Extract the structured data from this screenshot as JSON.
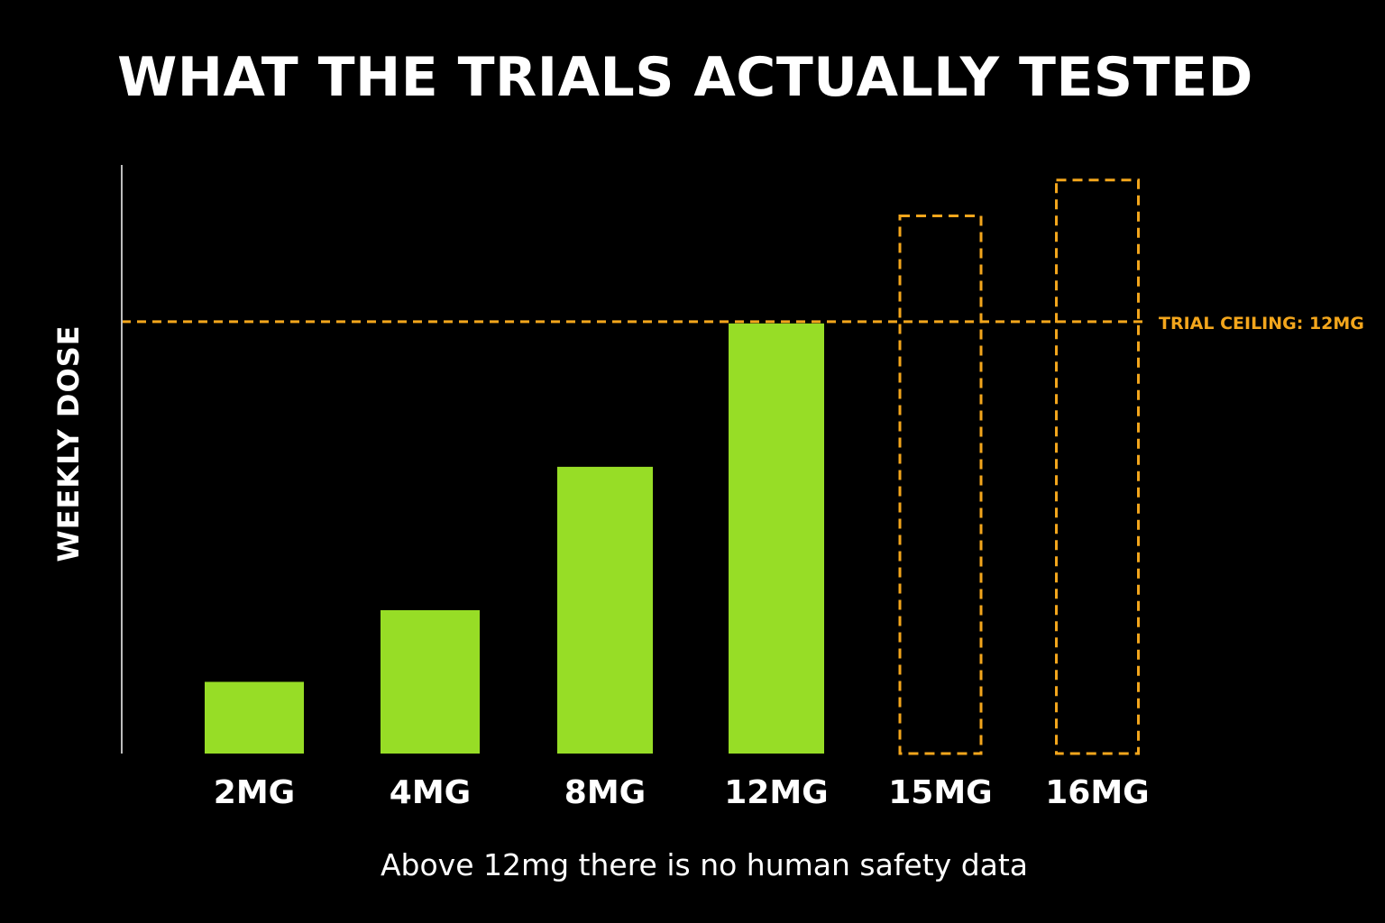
{
  "chart_data": {
    "type": "bar",
    "title": "WHAT THE TRIALS ACTUALLY TESTED",
    "xlabel": "",
    "ylabel": "WEEKLY DOSE",
    "categories": [
      "2MG",
      "4MG",
      "8MG",
      "12MG",
      "15MG",
      "16MG"
    ],
    "series": [
      {
        "values": [
          2,
          4,
          8,
          12,
          15,
          16
        ],
        "tested": [
          true,
          true,
          true,
          true,
          false,
          false
        ]
      }
    ],
    "ylim": [
      0,
      17
    ],
    "reference_line": {
      "value": 12,
      "label": "TRIAL CEILING: 12MG"
    },
    "grid": false,
    "caption": "Above 12mg there is no human safety data",
    "colors": {
      "tested": "#97dd26",
      "untested": "#f3a61c",
      "ceiling": "#f3a61c",
      "axis": "#bdbdbd",
      "text": "#ffffff",
      "background": "#000000"
    }
  }
}
